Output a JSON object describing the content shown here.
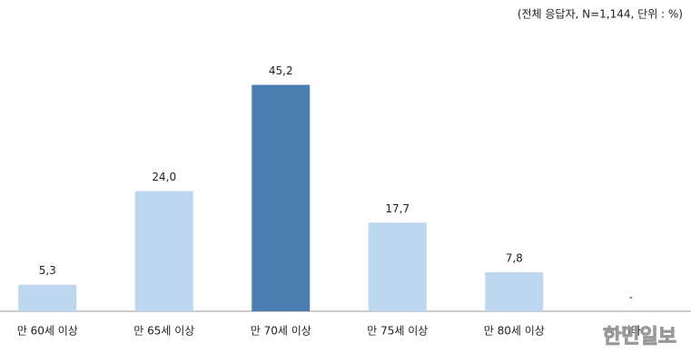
{
  "chart_data": {
    "type": "bar",
    "note": "(전체 응답자, N=1,144, 단위 : %)",
    "categories": [
      "만 60세 이상",
      "만 65세 이상",
      "만 70세 이상",
      "만 75세 이상",
      "만 80세 이상",
      "기타"
    ],
    "values": [
      5.3,
      24.0,
      45.2,
      17.7,
      7.8,
      null
    ],
    "value_labels": [
      "5,3",
      "24,0",
      "45,2",
      "17,7",
      "7,8",
      "-"
    ],
    "colors": [
      "#bdd7ee",
      "#bdd7ee",
      "#4a7db1",
      "#bdd7ee",
      "#bdd7ee",
      "#bdd7ee"
    ],
    "ylim": [
      0,
      50
    ],
    "watermark": "한민일보"
  }
}
